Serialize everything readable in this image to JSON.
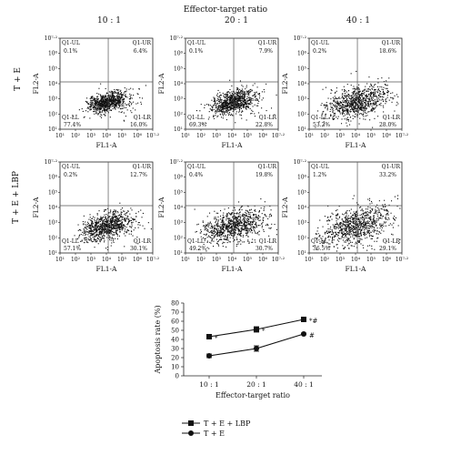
{
  "header": {
    "title": "Effector-target ratio"
  },
  "ratios": [
    "10 : 1",
    "20 : 1",
    "40 : 1"
  ],
  "rows": [
    {
      "label": "T + E"
    },
    {
      "label": "T + E + LBP"
    }
  ],
  "axes": {
    "x_label": "FL1-A",
    "y_label": "FL2-A",
    "ticks": [
      "10¹",
      "10²",
      "10³",
      "10⁴",
      "10⁵",
      "10⁶",
      "10⁷·²"
    ]
  },
  "panels": [
    {
      "ul": "0.1%",
      "ur": "6.4%",
      "ll": "77.4%",
      "lr": "16.0%",
      "spread": 0.8
    },
    {
      "ul": "0.1%",
      "ur": "7.9%",
      "ll": "69.3%",
      "lr": "22.8%",
      "spread": 1.0
    },
    {
      "ul": "0.2%",
      "ur": "18.6%",
      "ll": "53.2%",
      "lr": "28.0%",
      "spread": 1.35
    },
    {
      "ul": "0.2%",
      "ur": "12.7%",
      "ll": "57.1%",
      "lr": "30.1%",
      "spread": 1.15
    },
    {
      "ul": "0.4%",
      "ur": "19.8%",
      "ll": "49.2%",
      "lr": "30.7%",
      "spread": 1.35
    },
    {
      "ul": "1.2%",
      "ur": "33.2%",
      "ll": "36.5%",
      "lr": "29.1%",
      "spread": 1.6
    }
  ],
  "quadrant_names": {
    "ul": "Q1-UL",
    "ur": "Q1-UR",
    "ll": "Q1-LL",
    "lr": "Q1-LR"
  },
  "chart_data": {
    "type": "line",
    "categories": [
      "10 : 1",
      "20 : 1",
      "40 : 1"
    ],
    "series": [
      {
        "name": "T + E + LBP",
        "values": [
          43,
          51,
          62
        ],
        "errors": [
          2,
          3,
          1
        ],
        "marker": "square",
        "annotations": [
          "*",
          "*",
          "*#"
        ]
      },
      {
        "name": "T + E",
        "values": [
          22,
          30,
          46
        ],
        "errors": [
          2,
          3,
          1
        ],
        "marker": "circle",
        "annotations": [
          "",
          "",
          "#"
        ]
      }
    ],
    "xlabel": "Effector-target ratio",
    "ylabel": "Apoptosis rate (%)",
    "ylim": [
      0,
      80
    ],
    "yticks": [
      0,
      10,
      20,
      30,
      40,
      50,
      60,
      70,
      80
    ]
  }
}
